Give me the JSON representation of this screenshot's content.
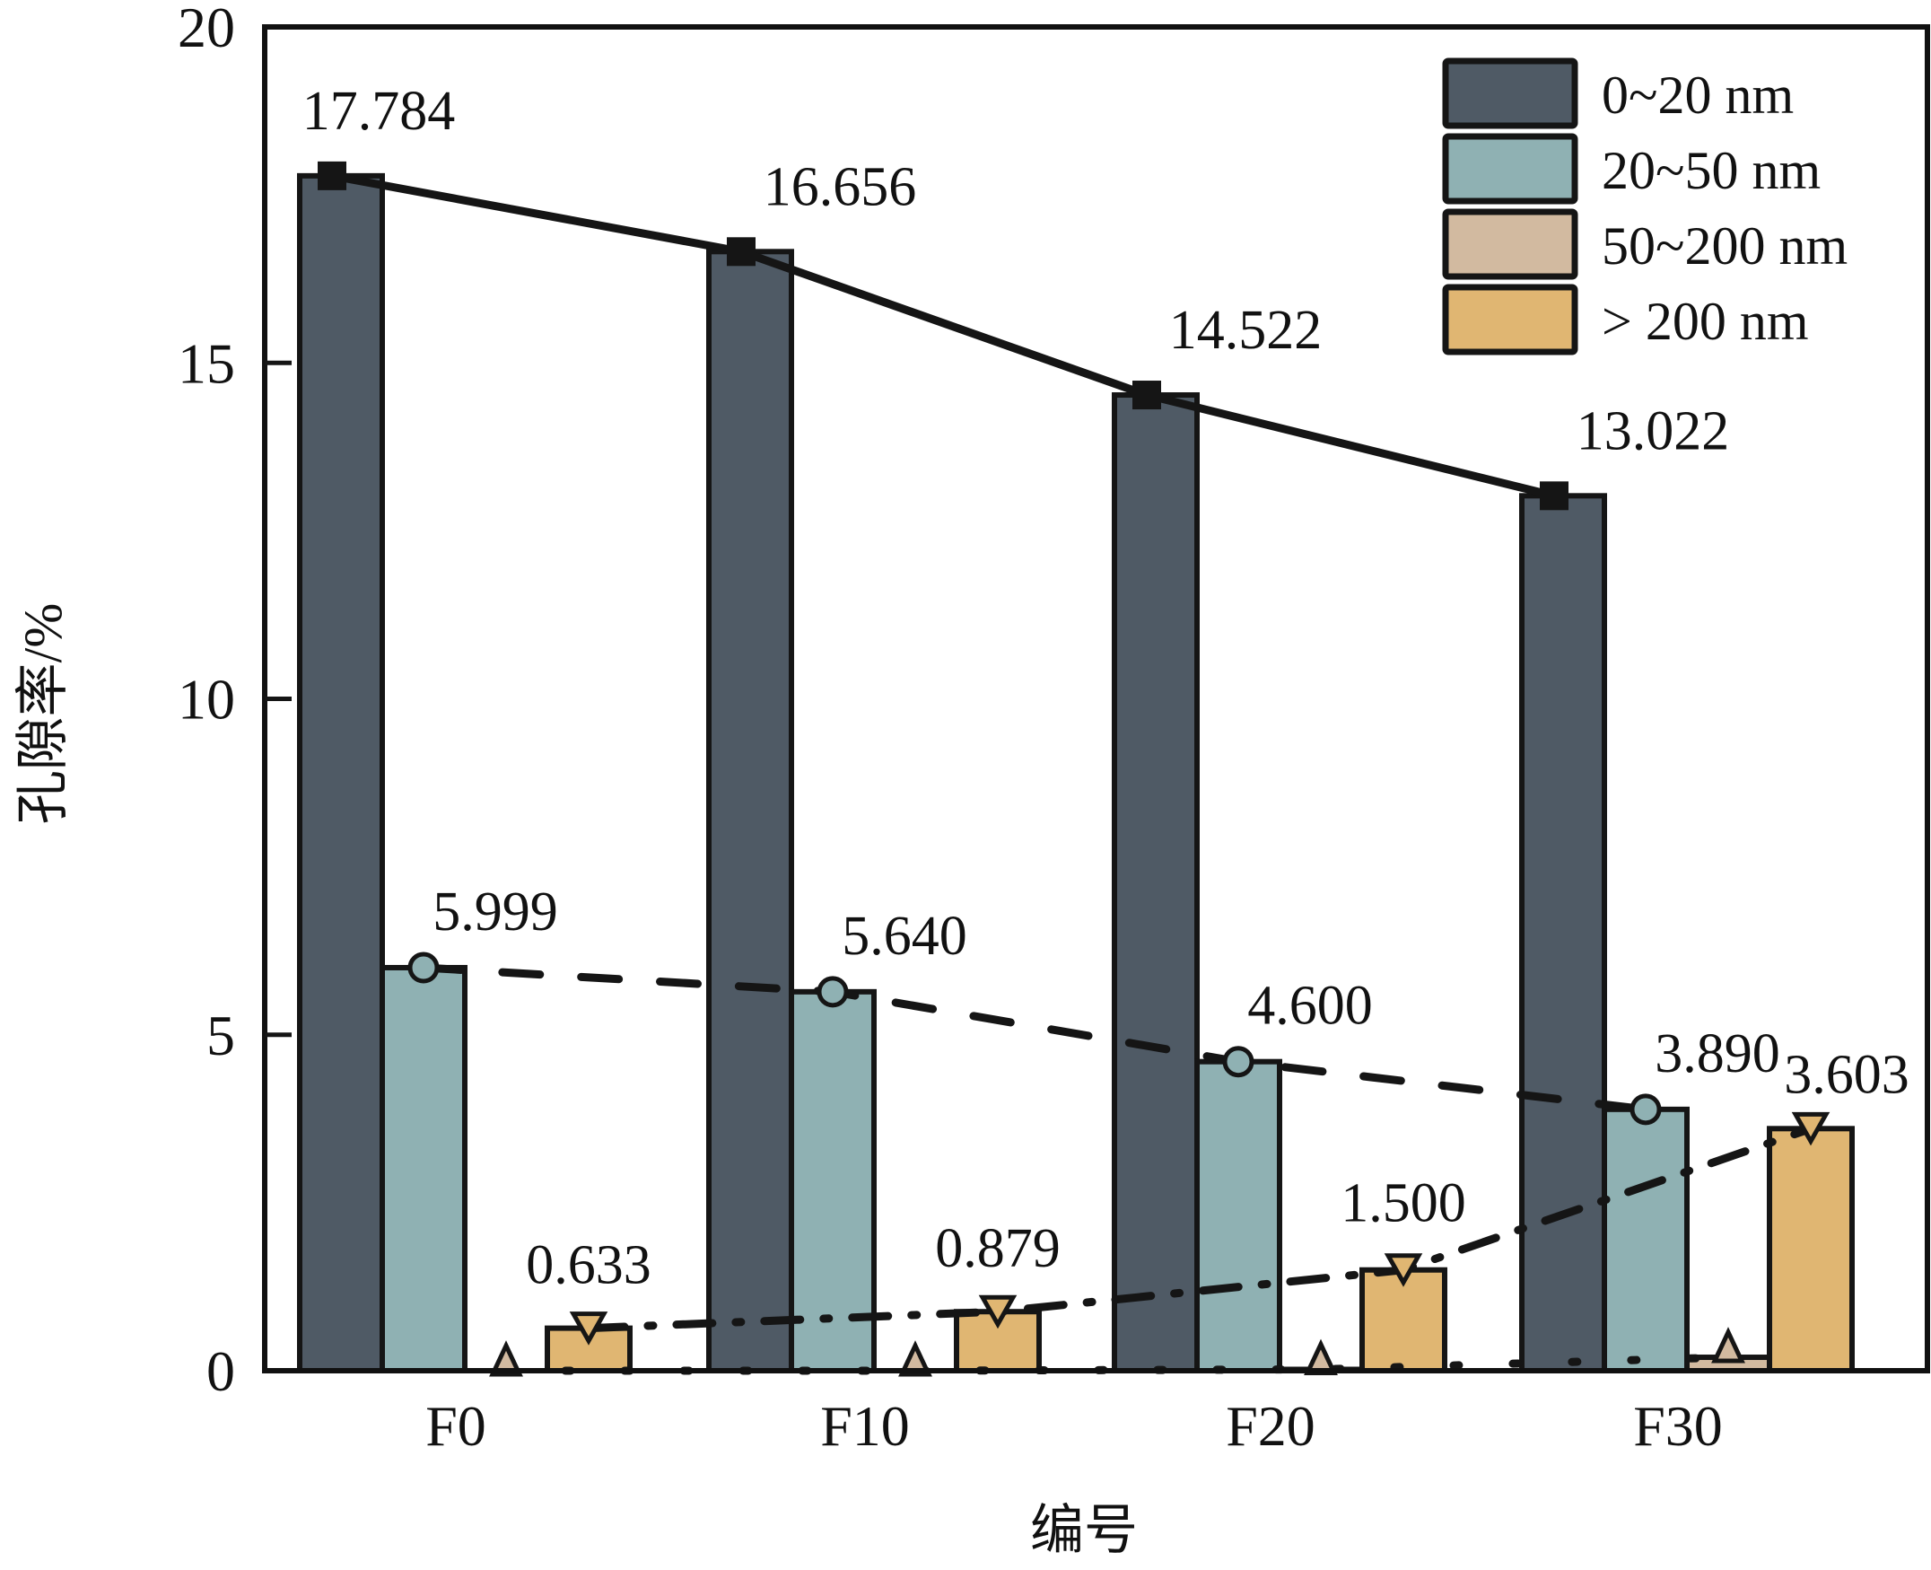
{
  "chart_data": {
    "type": "bar",
    "title": "",
    "xlabel": "编号",
    "ylabel": "孔隙率/%",
    "ylim": [
      0,
      20
    ],
    "yticks": [
      0,
      5,
      10,
      15,
      20
    ],
    "ytick_labels": [
      "0",
      "5",
      "10",
      "15",
      "20"
    ],
    "categories": [
      "F0",
      "F10",
      "F20",
      "F30"
    ],
    "grid": false,
    "legend_position": "top-right",
    "series": [
      {
        "name": "0~20 nm",
        "values": [
          17.784,
          16.656,
          14.522,
          13.022
        ],
        "labels": [
          "17.784",
          "16.656",
          "14.522",
          "13.022"
        ],
        "color": "#4f5a65",
        "marker": "square",
        "line": "solid"
      },
      {
        "name": "20~50 nm",
        "values": [
          5.999,
          5.64,
          4.6,
          3.89
        ],
        "labels": [
          "5.999",
          "5.640",
          "4.600",
          "3.890"
        ],
        "color": "#8fb1b3",
        "marker": "circle",
        "line": "dashed"
      },
      {
        "name": "50~200 nm",
        "values": [
          0.0,
          0.0,
          0.02,
          0.2
        ],
        "labels": [],
        "color": "#d2baa0",
        "marker": "triangle-up",
        "line": "dotted"
      },
      {
        "name": "> 200 nm",
        "values": [
          0.633,
          0.879,
          1.5,
          3.603
        ],
        "labels": [
          "0.633",
          "0.879",
          "1.500",
          "3.603"
        ],
        "color": "#e0b672",
        "marker": "triangle-down",
        "line": "dash-dot"
      }
    ]
  }
}
